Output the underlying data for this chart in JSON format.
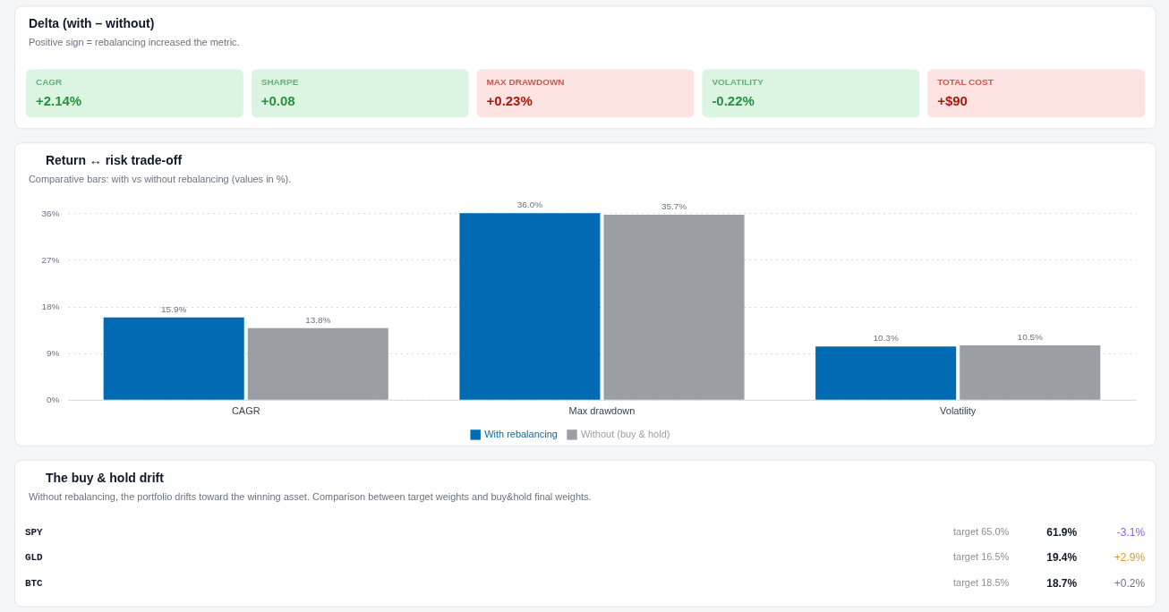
{
  "chart_data": [
    {
      "type": "other",
      "title": "Delta (with – without)",
      "subtitle": "Positive sign = rebalancing increased the metric.",
      "categories": [
        "CAGR",
        "SHARPE",
        "MAX DRAWDOWN",
        "VOLATILITY",
        "TOTAL COST"
      ],
      "annotations": [
        "+2.14%",
        "+0.08",
        "+0.23%",
        "-0.22%",
        "+$90"
      ],
      "colors": [
        "#dcf5e2",
        "#dcf5e2",
        "#fde4e2",
        "#dcf5e2",
        "#fde4e2"
      ]
    },
    {
      "type": "bar",
      "title": "Return ↔ risk trade-off",
      "subtitle": "Comparative bars: with vs without rebalancing (values in %).",
      "categories": [
        "CAGR",
        "Max drawdown",
        "Volatility"
      ],
      "series": [
        {
          "name": "With rebalancing",
          "color": "#006bb3",
          "values": [
            15.9,
            36.0,
            10.3
          ],
          "value_labels": [
            "15.9%",
            "36.0%",
            "10.3%"
          ]
        },
        {
          "name": "Without (buy & hold)",
          "color": "#9b9ea4",
          "values": [
            13.8,
            35.7,
            10.5
          ],
          "value_labels": [
            "13.8%",
            "35.7%",
            "10.5%"
          ]
        }
      ],
      "ylim": [
        0,
        36
      ],
      "yticks": [
        {
          "value": 0,
          "label": "0%"
        },
        {
          "value": 9,
          "label": "9%"
        },
        {
          "value": 18,
          "label": "18%"
        },
        {
          "value": 27,
          "label": "27%"
        },
        {
          "value": 36,
          "label": "36%"
        }
      ],
      "grid": "y",
      "legend": "bottom"
    },
    {
      "type": "other",
      "title": "The buy & hold drift",
      "subtitle": "Without rebalancing, the portfolio drifts toward the winning asset. Comparison between target weights and buy&hold final weights.",
      "categories": [
        "SPY",
        "GLD",
        "BTC"
      ],
      "annotations": [
        "target 65.0%",
        "61.9%",
        "-3.1%",
        "target 16.5%",
        "19.4%",
        "+2.9%",
        "target 18.5%",
        "18.7%",
        "+0.2%"
      ]
    }
  ]
}
